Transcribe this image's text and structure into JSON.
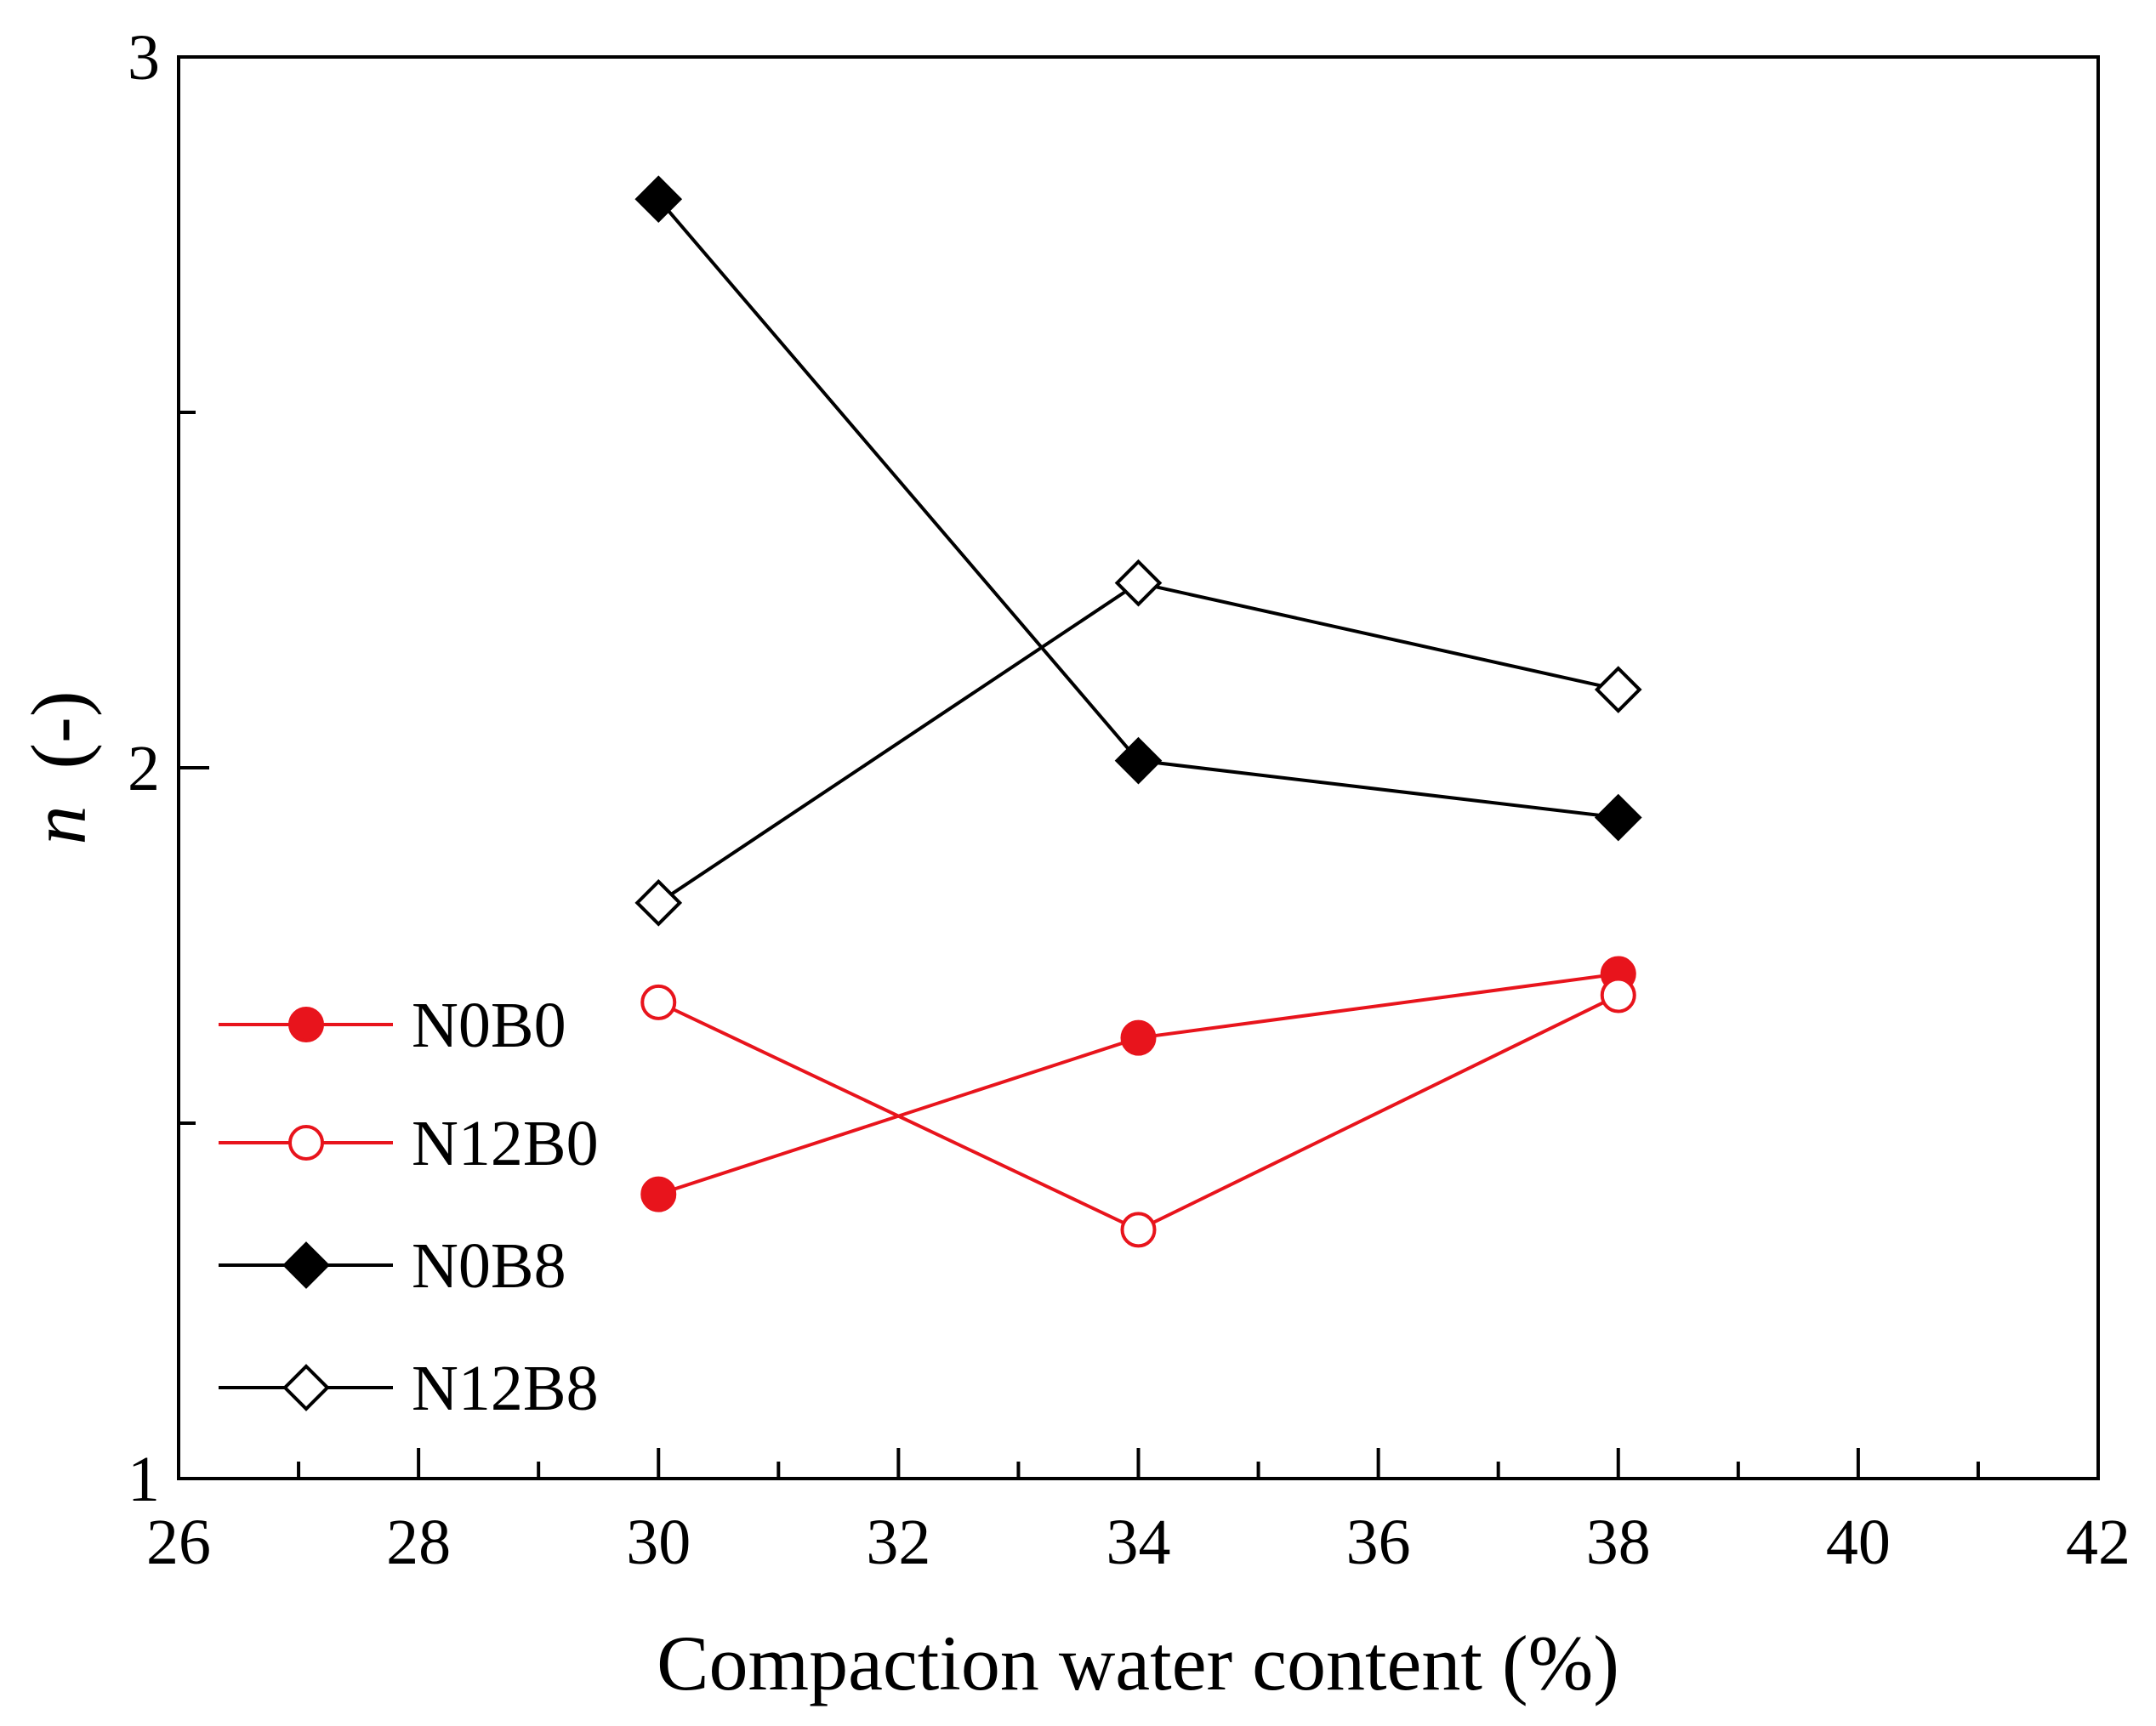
{
  "chart_data": {
    "type": "line",
    "title": "",
    "xlabel": "Compaction water content (%)",
    "ylabel_symbol": "n",
    "ylabel_unit": "(-)",
    "xlim": [
      26,
      42
    ],
    "ylim": [
      1,
      3
    ],
    "x_major_ticks": [
      26,
      28,
      30,
      32,
      34,
      36,
      38,
      40,
      42
    ],
    "x_tick_labels": [
      "26",
      "28",
      "30",
      "32",
      "34",
      "36",
      "38",
      "40",
      "42"
    ],
    "x_minor_ticks": [
      27,
      29,
      31,
      33,
      35,
      37,
      39,
      41
    ],
    "y_major_ticks": [
      1,
      2,
      3
    ],
    "y_tick_labels": [
      "1",
      "2",
      "3"
    ],
    "y_minor_ticks": [
      1.5,
      2.5
    ],
    "grid": false,
    "legend_position": "bottom-left",
    "series": [
      {
        "name": "N0B0",
        "color": "#e8141c",
        "marker": "circle",
        "filled": true,
        "x": [
          30,
          34,
          38
        ],
        "y": [
          1.4,
          1.62,
          1.71
        ]
      },
      {
        "name": "N12B0",
        "color": "#e8141c",
        "marker": "circle",
        "filled": false,
        "x": [
          30,
          34,
          38
        ],
        "y": [
          1.67,
          1.35,
          1.68
        ]
      },
      {
        "name": "N0B8",
        "color": "#000000",
        "marker": "diamond",
        "filled": true,
        "x": [
          30,
          34,
          38
        ],
        "y": [
          2.8,
          2.01,
          1.93
        ]
      },
      {
        "name": "N12B8",
        "color": "#000000",
        "marker": "diamond",
        "filled": false,
        "x": [
          30,
          34,
          38
        ],
        "y": [
          1.81,
          2.26,
          2.11
        ]
      }
    ]
  }
}
